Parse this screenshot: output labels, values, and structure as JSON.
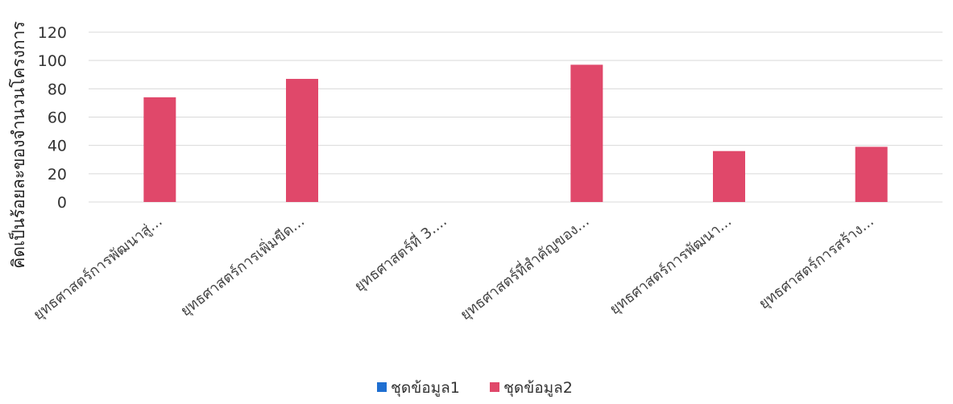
{
  "chart_data": {
    "type": "bar",
    "title": "",
    "xlabel": "",
    "ylabel": "คิดเป็นร้อยละของจำนวนโครงการ",
    "categories": [
      "ยุทธศาสตร์การพัฒนาสู่...",
      "ยุทธศาสตร์การเพิ่มขีด...",
      "ยุทธศาสตร์ที่ 3....",
      "ยุทธศาสตร์ที่สำคัญของ...",
      "ยุทธศาสตร์การพัฒนา...",
      "ยุทธศาสตร์การสร้าง..."
    ],
    "series": [
      {
        "name": "ชุดข้อมูล1",
        "values": [
          0,
          0,
          0,
          0,
          0,
          0
        ]
      },
      {
        "name": "ชุดข้อมูล2",
        "values": [
          74,
          87,
          0,
          97,
          36,
          39
        ]
      }
    ],
    "ylim": [
      0,
      120
    ],
    "yticks": [
      0,
      20,
      40,
      60,
      80,
      100,
      120
    ],
    "grid": true,
    "legend_position": "bottom",
    "colors": {
      "series1": "#1f6fd1",
      "series2": "#e0486a",
      "grid": "#d9d9d9"
    }
  }
}
